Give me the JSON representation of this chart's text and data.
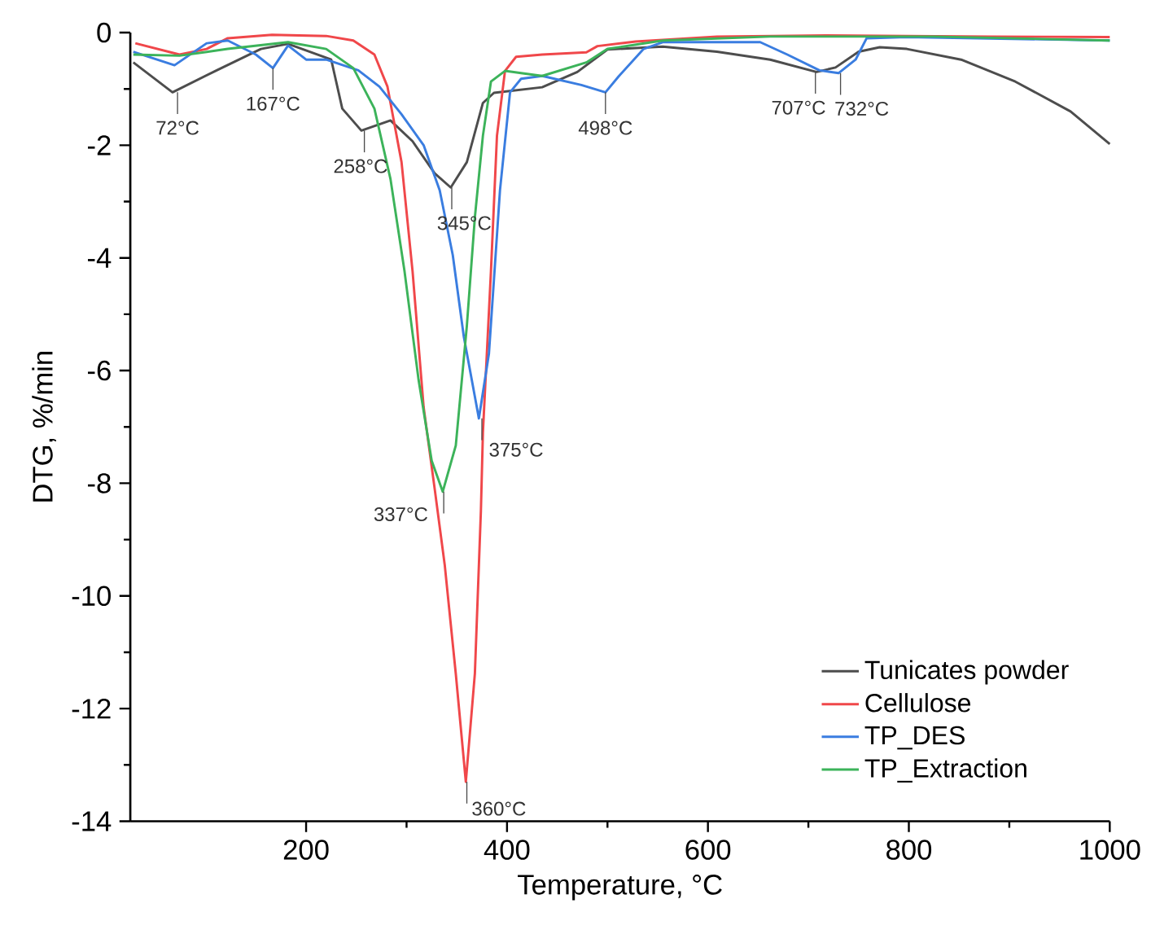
{
  "chart_data": {
    "type": "line",
    "xlabel": "Temperature, °C",
    "ylabel": "DTG, %/min",
    "xlim": [
      25,
      1000
    ],
    "ylim": [
      -14,
      0
    ],
    "xticks": [
      200,
      400,
      600,
      800,
      1000
    ],
    "yticks": [
      -14,
      -12,
      -10,
      -8,
      -6,
      -4,
      -2,
      0
    ],
    "grid": false,
    "legend": "bottom right",
    "marker": "none",
    "line_style": "solid",
    "series": [
      {
        "name": "Tunicates powder",
        "color": "#4d4d4d",
        "x": [
          28,
          67,
          111,
          155,
          182,
          225,
          236,
          255,
          284,
          306,
          328,
          344,
          360,
          376,
          387,
          435,
          470,
          500,
          555,
          609,
          662,
          708,
          727,
          750,
          771,
          798,
          852,
          906,
          961,
          1000
        ],
        "values": [
          -0.53,
          -1.06,
          -0.67,
          -0.29,
          -0.2,
          -0.48,
          -1.35,
          -1.74,
          -1.56,
          -1.93,
          -2.5,
          -2.75,
          -2.3,
          -1.25,
          -1.07,
          -0.97,
          -0.7,
          -0.3,
          -0.25,
          -0.34,
          -0.48,
          -0.7,
          -0.62,
          -0.34,
          -0.26,
          -0.29,
          -0.48,
          -0.87,
          -1.4,
          -1.98
        ]
      },
      {
        "name": "Cellulose",
        "color": "#f0474a",
        "x": [
          30,
          74,
          101,
          122,
          166,
          220,
          247,
          268,
          281,
          295,
          306,
          317,
          328,
          338,
          349,
          359,
          368,
          374,
          376,
          384,
          390,
          398,
          409,
          435,
          479,
          490,
          528,
          609,
          717,
          880,
          1000
        ],
        "values": [
          -0.19,
          -0.39,
          -0.29,
          -0.1,
          -0.04,
          -0.06,
          -0.14,
          -0.39,
          -0.96,
          -2.3,
          -4.24,
          -6.65,
          -8.1,
          -9.45,
          -11.38,
          -13.3,
          -11.38,
          -8.49,
          -7.1,
          -4.24,
          -1.83,
          -0.68,
          -0.43,
          -0.39,
          -0.35,
          -0.24,
          -0.16,
          -0.07,
          -0.05,
          -0.07,
          -0.08
        ]
      },
      {
        "name": "TP_DES",
        "color": "#3a7de0",
        "x": [
          28,
          69,
          101,
          122,
          150,
          167,
          182,
          200,
          220,
          252,
          273,
          295,
          317,
          333,
          346,
          357,
          372,
          382,
          393,
          403,
          414,
          435,
          474,
          498,
          511,
          536,
          555,
          652,
          679,
          711,
          730,
          747,
          758,
          798,
          1000
        ],
        "values": [
          -0.34,
          -0.58,
          -0.19,
          -0.14,
          -0.39,
          -0.63,
          -0.23,
          -0.48,
          -0.48,
          -0.67,
          -0.96,
          -1.45,
          -2.0,
          -2.8,
          -3.95,
          -5.4,
          -6.85,
          -5.7,
          -2.8,
          -1.06,
          -0.82,
          -0.77,
          -0.93,
          -1.06,
          -0.78,
          -0.29,
          -0.17,
          -0.17,
          -0.39,
          -0.67,
          -0.72,
          -0.48,
          -0.1,
          -0.08,
          -0.14
        ]
      },
      {
        "name": "TP_Extraction",
        "color": "#3cb35a",
        "x": [
          28,
          74,
          122,
          182,
          220,
          247,
          268,
          284,
          298,
          312,
          325,
          336,
          349,
          360,
          368,
          376,
          384,
          398,
          414,
          435,
          479,
          500,
          555,
          662,
          825,
          1000
        ],
        "values": [
          -0.39,
          -0.41,
          -0.29,
          -0.17,
          -0.29,
          -0.63,
          -1.35,
          -2.6,
          -4.24,
          -6.17,
          -7.6,
          -8.15,
          -7.33,
          -5.21,
          -3.28,
          -1.83,
          -0.87,
          -0.68,
          -0.72,
          -0.77,
          -0.53,
          -0.29,
          -0.14,
          -0.07,
          -0.07,
          -0.14
        ]
      }
    ],
    "annotations": [
      {
        "text": "72°C",
        "x": 72,
        "y": -1.06
      },
      {
        "text": "167°C",
        "x": 167,
        "y": -0.63
      },
      {
        "text": "258°C",
        "x": 258,
        "y": -1.74
      },
      {
        "text": "345°C",
        "x": 345,
        "y": -2.75
      },
      {
        "text": "498°C",
        "x": 498,
        "y": -1.06
      },
      {
        "text": "707°C",
        "x": 707,
        "y": -0.7
      },
      {
        "text": "732°C",
        "x": 732,
        "y": -0.72
      },
      {
        "text": "375°C",
        "x": 375,
        "y": -6.85
      },
      {
        "text": "337°C",
        "x": 337,
        "y": -8.15
      },
      {
        "text": "360°C",
        "x": 360,
        "y": -13.3
      }
    ]
  }
}
